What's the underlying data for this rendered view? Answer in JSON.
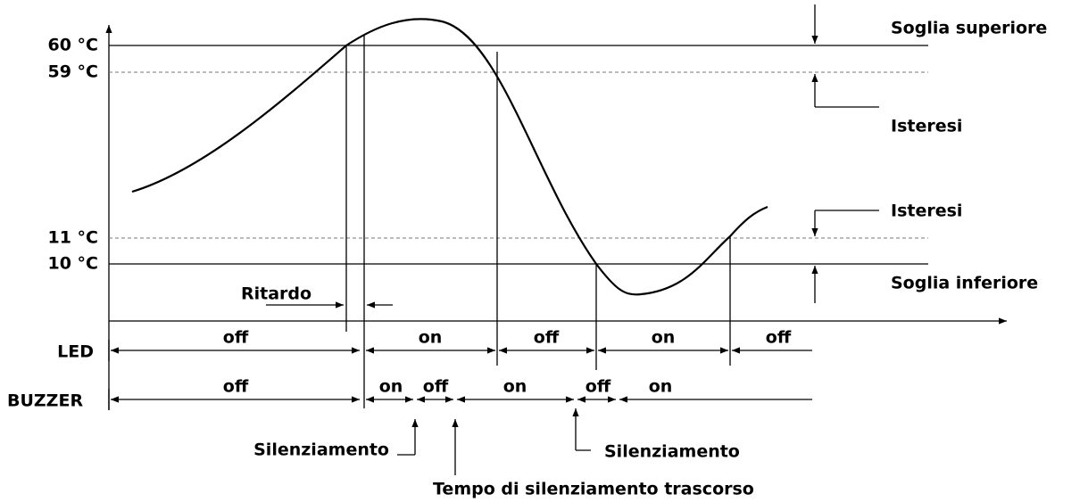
{
  "axis_labels": [
    "60 °C",
    "59 °C",
    "11 °C",
    "10 °C"
  ],
  "right_labels": [
    "Soglia superiore",
    "Isteresi",
    "Isteresi",
    "Soglia inferiore"
  ],
  "delay_label": "Ritardo",
  "rows": [
    {
      "label": "LED",
      "states": [
        "off",
        "on",
        "off",
        "on",
        "off"
      ]
    },
    {
      "label": "BUZZER",
      "states": [
        "off",
        "on",
        "off",
        "on",
        "off",
        "on"
      ]
    }
  ],
  "annotations": [
    "Silenziamento",
    "Silenziamento",
    "Tempo di silenziamento trascorso"
  ]
}
